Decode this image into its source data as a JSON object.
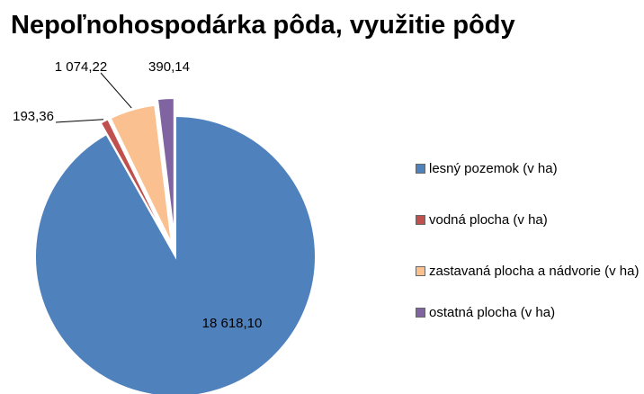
{
  "chart_data": {
    "type": "pie",
    "title": "Nepoľnohospodárka pôda, využitie pôdy",
    "categories": [
      "lesný pozemok (v ha)",
      "vodná plocha (v ha)",
      "zastavaná plocha a nádvorie (v ha)",
      "ostatná plocha (v ha)"
    ],
    "values": [
      18618.1,
      193.36,
      1074.22,
      390.14
    ],
    "value_labels": [
      "18 618,10",
      "193,36",
      "1 074,22",
      "390,14"
    ],
    "colors": [
      "#4f81bd",
      "#c0504d",
      "#fac090",
      "#8064a2"
    ],
    "legend": "right"
  }
}
